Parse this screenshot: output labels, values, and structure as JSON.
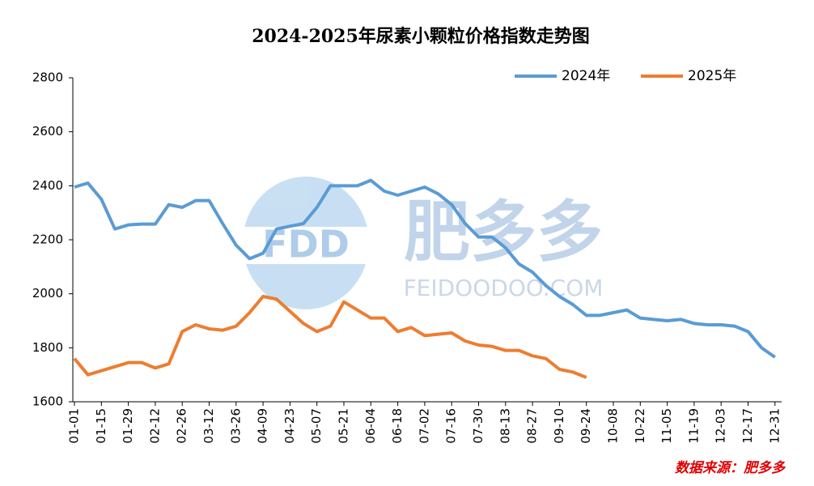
{
  "chart_data": {
    "type": "line",
    "title": "2024-2025年尿素小颗粒价格指数走势图",
    "categories": [
      "01-01",
      null,
      "01-15",
      null,
      "01-29",
      null,
      "02-12",
      null,
      "02-26",
      null,
      "03-12",
      null,
      "03-26",
      null,
      "04-09",
      null,
      "04-23",
      null,
      "05-07",
      null,
      "05-21",
      null,
      "06-04",
      null,
      "06-18",
      null,
      "07-02",
      null,
      "07-16",
      null,
      "07-30",
      null,
      "08-13",
      null,
      "08-27",
      null,
      "09-10",
      null,
      "09-24",
      null,
      "10-08",
      null,
      "10-22",
      null,
      "11-05",
      null,
      "11-19",
      null,
      "12-03",
      null,
      "12-17",
      null,
      "12-31"
    ],
    "series": [
      {
        "name": "2024年",
        "color": "#5b9bd5",
        "values": [
          2395,
          2410,
          2350,
          2240,
          2255,
          2258,
          2258,
          2330,
          2320,
          2345,
          2345,
          2260,
          2180,
          2130,
          2150,
          2240,
          2250,
          2260,
          2320,
          2400,
          2400,
          2400,
          2420,
          2380,
          2365,
          2380,
          2395,
          2370,
          2330,
          2260,
          2210,
          2210,
          2170,
          2110,
          2080,
          2030,
          1990,
          1960,
          1920,
          1920,
          1930,
          1940,
          1910,
          1905,
          1900,
          1905,
          1890,
          1885,
          1885,
          1880,
          1860,
          1800,
          1765
        ]
      },
      {
        "name": "2025年",
        "color": "#ed7d31",
        "values": [
          1760,
          1700,
          1715,
          1730,
          1745,
          1745,
          1725,
          1740,
          1860,
          1885,
          1870,
          1865,
          1880,
          1930,
          1990,
          1980,
          1935,
          1890,
          1860,
          1880,
          1970,
          1940,
          1910,
          1910,
          1860,
          1875,
          1845,
          1850,
          1855,
          1825,
          1810,
          1805,
          1790,
          1790,
          1770,
          1760,
          1720,
          1710,
          1690,
          null,
          null,
          null,
          null,
          null,
          null,
          null,
          null,
          null,
          null,
          null,
          null,
          null,
          null
        ]
      }
    ],
    "ylim": [
      1600,
      2800
    ],
    "yticks": [
      1600,
      1800,
      2000,
      2200,
      2400,
      2600,
      2800
    ],
    "grid": false,
    "legend": "top-right",
    "watermark": {
      "logo": "FDD",
      "name": "肥多多",
      "url": "FEIDOODOO.COM"
    },
    "source": "数据来源：肥多多"
  }
}
